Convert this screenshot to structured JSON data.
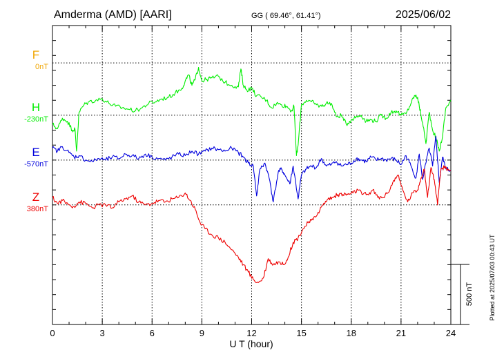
{
  "header": {
    "station": "Amderma (AMD)  [AARI]",
    "coords": "GG ( 69.46°,  61.41°)",
    "date": "2025/06/02"
  },
  "footer": {
    "plotted": "Plotted at 2025/07/03 00:43 UT"
  },
  "chart_data": {
    "type": "line",
    "xlabel": "U T (hour)",
    "xlim": [
      0,
      24
    ],
    "xticks": [
      "0",
      "3",
      "6",
      "9",
      "12",
      "15",
      "18",
      "21",
      "24"
    ],
    "scale_bar_label": "500 nT",
    "scale_bar_nT": 500,
    "y_range_nT": [
      -1100,
      900
    ],
    "series": [
      {
        "name": "F",
        "baseline_label": "0nT",
        "baseline_offset_nT": 650,
        "color": "#f0a500",
        "x": [],
        "y": []
      },
      {
        "name": "H",
        "baseline_label": "-230nT",
        "baseline_offset_nT": 300,
        "color": "#00ee00",
        "x": [
          0,
          0.3,
          0.6,
          0.9,
          1.2,
          1.35,
          1.45,
          1.6,
          1.9,
          2.2,
          2.6,
          3.0,
          3.4,
          3.8,
          4.2,
          4.6,
          5.0,
          5.4,
          5.8,
          6.2,
          6.6,
          7.0,
          7.4,
          7.8,
          8.0,
          8.2,
          8.4,
          8.6,
          8.8,
          9.0,
          9.3,
          9.6,
          10.0,
          10.4,
          10.8,
          11.2,
          11.35,
          11.5,
          11.7,
          12.0,
          12.3,
          12.6,
          12.9,
          13.2,
          13.5,
          13.8,
          14.1,
          14.4,
          14.55,
          14.7,
          14.8,
          15.0,
          15.3,
          15.6,
          15.9,
          16.2,
          16.5,
          16.8,
          17.1,
          17.4,
          17.7,
          18.0,
          18.3,
          18.6,
          18.9,
          19.2,
          19.5,
          19.8,
          20.1,
          20.4,
          20.7,
          21.0,
          21.3,
          21.6,
          21.8,
          22.0,
          22.1,
          22.3,
          22.5,
          22.7,
          22.9,
          23.1,
          23.3,
          23.5,
          23.7,
          24.0
        ],
        "y": [
          240,
          210,
          280,
          260,
          200,
          210,
          60,
          320,
          370,
          390,
          400,
          410,
          380,
          360,
          350,
          340,
          330,
          350,
          380,
          390,
          410,
          420,
          450,
          480,
          530,
          570,
          500,
          540,
          620,
          530,
          540,
          550,
          560,
          520,
          500,
          490,
          610,
          500,
          470,
          480,
          430,
          420,
          400,
          350,
          380,
          370,
          360,
          330,
          360,
          30,
          100,
          370,
          400,
          390,
          370,
          360,
          380,
          380,
          290,
          300,
          240,
          270,
          290,
          300,
          260,
          270,
          260,
          300,
          280,
          320,
          330,
          300,
          310,
          380,
          430,
          420,
          360,
          250,
          110,
          320,
          200,
          150,
          60,
          160,
          350,
          400
        ],
        "thin_last_segment": true
      },
      {
        "name": "E",
        "baseline_label": "-570nT",
        "baseline_offset_nT": 0,
        "color": "#0000dd",
        "x": [
          0,
          0.3,
          0.6,
          1.0,
          1.3,
          1.6,
          2.0,
          2.4,
          2.8,
          3.2,
          3.6,
          4.0,
          4.4,
          4.8,
          5.2,
          5.6,
          6.0,
          6.4,
          6.8,
          7.2,
          7.6,
          8.0,
          8.4,
          8.8,
          9.2,
          9.6,
          10.0,
          10.4,
          10.8,
          11.2,
          11.5,
          11.8,
          12.1,
          12.3,
          12.5,
          12.8,
          13.1,
          13.3,
          13.6,
          13.8,
          14.0,
          14.3,
          14.5,
          14.8,
          15.0,
          15.3,
          15.6,
          15.9,
          16.2,
          16.5,
          16.8,
          17.1,
          17.4,
          17.7,
          18.0,
          18.3,
          18.6,
          18.9,
          19.2,
          19.5,
          19.8,
          20.1,
          20.4,
          20.7,
          21.0,
          21.3,
          21.6,
          21.9,
          22.1,
          22.3,
          22.5,
          22.7,
          22.9,
          23.1,
          23.3,
          23.5,
          23.7,
          24.0
        ],
        "y": [
          80,
          60,
          90,
          50,
          20,
          30,
          0,
          -10,
          10,
          0,
          20,
          10,
          40,
          30,
          10,
          40,
          20,
          10,
          0,
          20,
          40,
          30,
          60,
          40,
          60,
          80,
          70,
          60,
          80,
          50,
          20,
          -20,
          -40,
          -240,
          -60,
          -20,
          -140,
          -280,
          -80,
          -60,
          -100,
          -160,
          -40,
          -260,
          -100,
          -60,
          -40,
          -50,
          10,
          -40,
          -30,
          -10,
          -40,
          -30,
          -20,
          10,
          0,
          -10,
          20,
          0,
          10,
          0,
          10,
          0,
          -30,
          30,
          -40,
          -120,
          40,
          -130,
          -20,
          80,
          -40,
          160,
          -150,
          20,
          -60,
          -70
        ],
        "thin_last_segment": true
      },
      {
        "name": "Z",
        "baseline_label": "380nT",
        "baseline_offset_nT": -300,
        "color": "#ee0000",
        "x": [
          0,
          0.3,
          0.6,
          1.0,
          1.3,
          1.6,
          2.0,
          2.4,
          2.8,
          3.2,
          3.6,
          4.0,
          4.4,
          4.8,
          5.2,
          5.6,
          6.0,
          6.4,
          6.8,
          7.2,
          7.6,
          8.0,
          8.3,
          8.6,
          8.9,
          9.2,
          9.6,
          10.0,
          10.4,
          10.8,
          11.2,
          11.5,
          11.8,
          12.1,
          12.4,
          12.7,
          13.0,
          13.3,
          13.6,
          13.9,
          14.2,
          14.5,
          14.8,
          15.1,
          15.4,
          15.7,
          16.0,
          16.3,
          16.6,
          16.9,
          17.2,
          17.5,
          17.8,
          18.1,
          18.4,
          18.7,
          19.0,
          19.3,
          19.6,
          19.9,
          20.2,
          20.5,
          20.8,
          21.1,
          21.4,
          21.7,
          22.0,
          22.2,
          22.4,
          22.6,
          22.8,
          23.0,
          23.2,
          23.4,
          23.6,
          23.8,
          24.0
        ],
        "y": [
          -250,
          -290,
          -270,
          -300,
          -310,
          -280,
          -290,
          -320,
          -300,
          -300,
          -320,
          -280,
          -260,
          -240,
          -280,
          -300,
          -290,
          -270,
          -280,
          -260,
          -250,
          -220,
          -270,
          -330,
          -420,
          -460,
          -500,
          -520,
          -550,
          -600,
          -650,
          -700,
          -750,
          -800,
          -820,
          -790,
          -660,
          -700,
          -680,
          -700,
          -650,
          -550,
          -520,
          -460,
          -420,
          -400,
          -350,
          -300,
          -260,
          -250,
          -230,
          -230,
          -230,
          -220,
          -200,
          -230,
          -230,
          -200,
          -250,
          -250,
          -220,
          -150,
          -100,
          -200,
          -280,
          -220,
          -200,
          -120,
          -60,
          -250,
          -50,
          -130,
          -300,
          -60,
          -50,
          -60,
          -70
        ],
        "thin_last_segment": true
      }
    ]
  }
}
